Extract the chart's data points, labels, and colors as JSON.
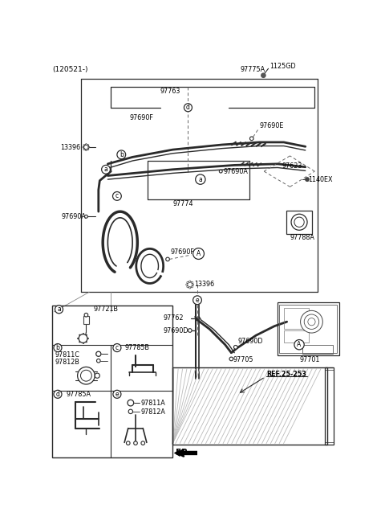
{
  "bg_color": "#ffffff",
  "fig_width": 4.8,
  "fig_height": 6.53,
  "dpi": 100,
  "lc": "#2a2a2a",
  "labels": {
    "top_left": "(120521-)",
    "part_1125GD": "1125GD",
    "part_97775A": "97775A",
    "part_97763": "97763",
    "part_97690F_top": "97690F",
    "part_d": "d",
    "part_97690E": "97690E",
    "part_13396_left": "13396",
    "part_a1": "a",
    "part_b": "b",
    "part_97690A_left": "97690A",
    "part_c": "c",
    "part_97690A_mid": "97690A",
    "part_97623": "97623",
    "part_1140EX": "1140EX",
    "part_a2": "a",
    "part_97774": "97774",
    "part_97690F_mid": "97690F",
    "part_A1": "A",
    "part_97788A": "97788A",
    "part_13396_mid": "13396",
    "part_e": "e",
    "part_97762": "97762",
    "part_97690D_left": "97690D",
    "part_97690D_right": "97690D",
    "part_97705": "97705",
    "part_97701": "97701",
    "part_A2": "A",
    "part_REF": "REF.25-253",
    "part_FR": "FR.",
    "box_a_label": "a",
    "box_a_part": "97721B",
    "box_b_label": "b",
    "box_b_part1": "97811C",
    "box_b_part2": "97812B",
    "box_c_label": "c",
    "box_c_part": "97785B",
    "box_d_label": "d",
    "box_d_part": "97785A",
    "box_e_label": "e",
    "box_e_part1": "97811A",
    "box_e_part2": "97812A"
  }
}
